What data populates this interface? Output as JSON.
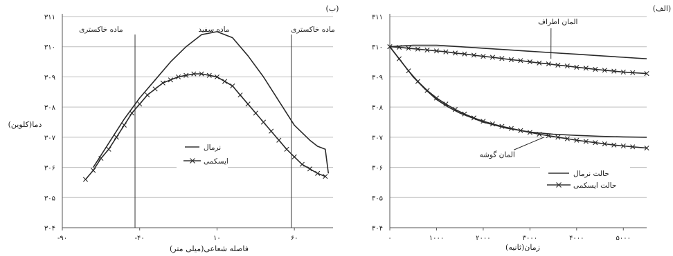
{
  "chart_data": [
    {
      "type": "line",
      "panel_label": "(ب)",
      "xlabel": "فاصله شعاعی(میلی متر)",
      "ylabel": "دما(کلوین)",
      "xlim": [
        -90,
        85
      ],
      "ylim": [
        304,
        311
      ],
      "x_ticks": [
        -90,
        -40,
        10,
        60
      ],
      "x_tick_labels": [
        "-۹۰",
        "-۴۰",
        "۱۰",
        "۶۰"
      ],
      "y_ticks": [
        304,
        305,
        306,
        307,
        308,
        309,
        310,
        311
      ],
      "y_tick_labels": [
        "۳۰۴",
        "۳۰۵",
        "۳۰۶",
        "۳۰۷",
        "۳۰۸",
        "۳۰۹",
        "۳۱۰",
        "۳۱۱"
      ],
      "grid": true,
      "legend": {
        "placement": "center"
      },
      "vlines": [
        -43,
        58
      ],
      "regions": [
        {
          "label": "ماده خاکستری",
          "x": -65
        },
        {
          "label": "ماده سفید",
          "x": 8
        },
        {
          "label": "ماده خاکستری",
          "x": 72
        }
      ],
      "series": [
        {
          "name": "نرمال",
          "marker": "none",
          "x": [
            -70,
            -60,
            -50,
            -40,
            -30,
            -20,
            -10,
            0,
            10,
            20,
            30,
            40,
            50,
            60,
            70,
            75,
            80,
            82
          ],
          "y": [
            306.0,
            306.8,
            307.6,
            308.3,
            308.9,
            309.5,
            310.0,
            310.4,
            310.5,
            310.3,
            309.7,
            309.0,
            308.2,
            307.4,
            306.9,
            306.7,
            306.6,
            305.8
          ]
        },
        {
          "name": "ایسکمی",
          "marker": "x",
          "x": [
            -75,
            -70,
            -65,
            -60,
            -55,
            -50,
            -45,
            -40,
            -35,
            -30,
            -25,
            -20,
            -15,
            -10,
            -5,
            0,
            5,
            10,
            15,
            20,
            25,
            30,
            35,
            40,
            45,
            50,
            55,
            60,
            65,
            70,
            75,
            80
          ],
          "y": [
            305.6,
            305.9,
            306.3,
            306.6,
            307.0,
            307.4,
            307.8,
            308.1,
            308.4,
            308.6,
            308.8,
            308.9,
            309.0,
            309.05,
            309.1,
            309.1,
            309.05,
            309.0,
            308.85,
            308.7,
            308.4,
            308.1,
            307.8,
            307.5,
            307.2,
            306.9,
            306.6,
            306.35,
            306.1,
            305.95,
            305.8,
            305.7
          ]
        }
      ]
    },
    {
      "type": "line",
      "panel_label": "(الف)",
      "xlabel": "زمان(ثانیه)",
      "ylabel": "",
      "xlim": [
        0,
        5500
      ],
      "ylim": [
        304,
        311
      ],
      "x_ticks": [
        0,
        1000,
        2000,
        3000,
        4000,
        5000
      ],
      "x_tick_labels": [
        "۰",
        "۱۰۰۰",
        "۲۰۰۰",
        "۳۰۰۰",
        "۴۰۰۰",
        "۵۰۰۰"
      ],
      "y_ticks": [
        304,
        305,
        306,
        307,
        308,
        309,
        310,
        311
      ],
      "y_tick_labels": [
        "۳۰۴",
        "۳۰۵",
        "۳۰۶",
        "۳۰۷",
        "۳۰۸",
        "۳۰۹",
        "۳۱۰",
        "۳۱۱"
      ],
      "grid": true,
      "legend": {
        "placement": "bottom-right"
      },
      "annotations": [
        {
          "text": "المان اطراف",
          "x": 3600,
          "y": 310.75,
          "arrow_to": [
            3450,
            309.6
          ]
        },
        {
          "text": "المان گوشه",
          "x": 2300,
          "y": 306.35,
          "arrow_to": [
            3300,
            307.0
          ]
        }
      ],
      "series": [
        {
          "name": "حالت نرمال",
          "group": "peripheral",
          "marker": "none",
          "x": [
            0,
            500,
            1000,
            1500,
            2000,
            2500,
            3000,
            3500,
            4000,
            4500,
            5000,
            5500
          ],
          "y": [
            310.0,
            310.05,
            310.05,
            310.0,
            309.95,
            309.9,
            309.85,
            309.8,
            309.75,
            309.7,
            309.65,
            309.6
          ]
        },
        {
          "name": "حالت ایسکمی",
          "group": "peripheral",
          "marker": "x",
          "x": [
            0,
            200,
            400,
            600,
            800,
            1000,
            1200,
            1400,
            1600,
            1800,
            2000,
            2200,
            2400,
            2600,
            2800,
            3000,
            3200,
            3400,
            3600,
            3800,
            4000,
            4200,
            4400,
            4600,
            4800,
            5000,
            5200,
            5500
          ],
          "y": [
            310.0,
            309.98,
            309.95,
            309.92,
            309.89,
            309.86,
            309.83,
            309.79,
            309.76,
            309.72,
            309.68,
            309.65,
            309.61,
            309.57,
            309.54,
            309.5,
            309.46,
            309.43,
            309.39,
            309.36,
            309.32,
            309.29,
            309.25,
            309.22,
            309.19,
            309.16,
            309.14,
            309.11
          ]
        },
        {
          "name": "حالت نرمال",
          "group": "corner",
          "marker": "none",
          "x": [
            0,
            250,
            500,
            750,
            1000,
            1250,
            1500,
            2000,
            2500,
            3000,
            3500,
            4000,
            4500,
            5000,
            5500
          ],
          "y": [
            310.0,
            309.5,
            309.0,
            308.6,
            308.25,
            308.0,
            307.8,
            307.5,
            307.3,
            307.17,
            307.1,
            307.06,
            307.03,
            307.01,
            307.0
          ]
        },
        {
          "name": "حالت ایسکمی",
          "group": "corner",
          "marker": "x",
          "x": [
            0,
            200,
            400,
            600,
            800,
            1000,
            1200,
            1400,
            1600,
            1800,
            2000,
            2200,
            2400,
            2600,
            2800,
            3000,
            3200,
            3400,
            3600,
            3800,
            4000,
            4200,
            4400,
            4600,
            4800,
            5000,
            5200,
            5500
          ],
          "y": [
            310.0,
            309.6,
            309.2,
            308.85,
            308.55,
            308.3,
            308.1,
            307.92,
            307.77,
            307.64,
            307.53,
            307.44,
            307.36,
            307.29,
            307.22,
            307.16,
            307.1,
            307.05,
            307.0,
            306.95,
            306.9,
            306.86,
            306.82,
            306.78,
            306.74,
            306.71,
            306.68,
            306.64
          ]
        }
      ]
    }
  ]
}
